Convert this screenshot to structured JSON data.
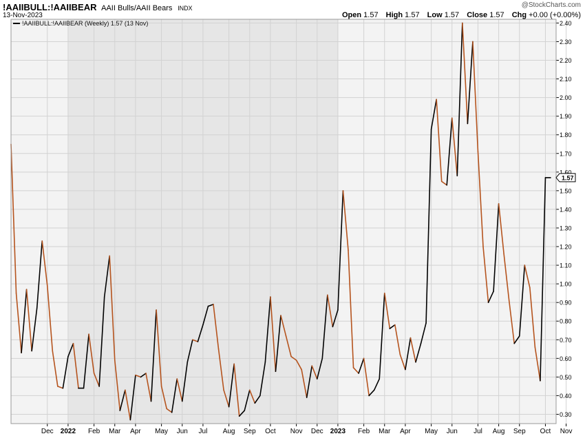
{
  "header": {
    "symbol": "!AAIIBULL:!AAIIBEAR",
    "description": "AAII Bulls/AAII Bears",
    "exchange": "INDX",
    "date": "13-Nov-2023",
    "brand": "@StockCharts.com",
    "open_label": "Open",
    "open": "1.57",
    "high_label": "High",
    "high": "1.57",
    "low_label": "Low",
    "low": "1.57",
    "close_label": "Close",
    "close": "1.57",
    "chg_label": "Chg",
    "chg": "+0.00 (+0.00%)"
  },
  "legend": {
    "label": "!AAIIBULL:!AAIIBEAR (Weekly) 1.57 (13 Nov)"
  },
  "chart_data": {
    "type": "line",
    "frequency": "weekly",
    "up_color": "#000000",
    "down_color": "#b5531d",
    "grid": true,
    "ylim": [
      0.25,
      2.42
    ],
    "y_ticks": [
      "0.30",
      "0.40",
      "0.50",
      "0.60",
      "0.70",
      "0.80",
      "0.90",
      "1.00",
      "1.10",
      "1.20",
      "1.30",
      "1.40",
      "1.50",
      "1.60",
      "1.70",
      "1.80",
      "1.90",
      "2.00",
      "2.10",
      "2.20",
      "2.30",
      "2.40"
    ],
    "x_ticks": [
      {
        "label": "Dec",
        "bold": false,
        "week": 7
      },
      {
        "label": "2022",
        "bold": true,
        "week": 11
      },
      {
        "label": "Feb",
        "bold": false,
        "week": 16
      },
      {
        "label": "Mar",
        "bold": false,
        "week": 20
      },
      {
        "label": "Apr",
        "bold": false,
        "week": 24
      },
      {
        "label": "May",
        "bold": false,
        "week": 29
      },
      {
        "label": "Jun",
        "bold": false,
        "week": 33
      },
      {
        "label": "Jul",
        "bold": false,
        "week": 37
      },
      {
        "label": "Aug",
        "bold": false,
        "week": 42
      },
      {
        "label": "Sep",
        "bold": false,
        "week": 46
      },
      {
        "label": "Oct",
        "bold": false,
        "week": 50
      },
      {
        "label": "Nov",
        "bold": false,
        "week": 55
      },
      {
        "label": "Dec",
        "bold": false,
        "week": 59
      },
      {
        "label": "2023",
        "bold": true,
        "week": 63
      },
      {
        "label": "Feb",
        "bold": false,
        "week": 68
      },
      {
        "label": "Mar",
        "bold": false,
        "week": 72
      },
      {
        "label": "Apr",
        "bold": false,
        "week": 76
      },
      {
        "label": "May",
        "bold": false,
        "week": 81
      },
      {
        "label": "Jun",
        "bold": false,
        "week": 85
      },
      {
        "label": "Jul",
        "bold": false,
        "week": 90
      },
      {
        "label": "Aug",
        "bold": false,
        "week": 94
      },
      {
        "label": "Sep",
        "bold": false,
        "week": 98
      },
      {
        "label": "Oct",
        "bold": false,
        "week": 103
      },
      {
        "label": "Nov",
        "bold": false,
        "week": 107
      }
    ],
    "shaded_weeks": [
      11,
      63
    ],
    "last_value_label": "1.57",
    "series": [
      {
        "values": [
          1.75,
          0.95,
          0.63,
          0.97,
          0.64,
          0.87,
          1.23,
          0.99,
          0.64,
          0.45,
          0.44,
          0.61,
          0.68,
          0.44,
          0.44,
          0.73,
          0.52,
          0.45,
          0.93,
          1.15,
          0.59,
          0.32,
          0.43,
          0.27,
          0.51,
          0.5,
          0.52,
          0.37,
          0.86,
          0.45,
          0.33,
          0.31,
          0.49,
          0.37,
          0.58,
          0.7,
          0.69,
          0.78,
          0.88,
          0.89,
          0.65,
          0.43,
          0.34,
          0.57,
          0.29,
          0.32,
          0.43,
          0.36,
          0.4,
          0.58,
          0.93,
          0.53,
          0.83,
          0.72,
          0.61,
          0.59,
          0.54,
          0.39,
          0.56,
          0.49,
          0.6,
          0.94,
          0.77,
          0.86,
          1.5,
          1.18,
          0.55,
          0.52,
          0.6,
          0.4,
          0.43,
          0.49,
          0.95,
          0.76,
          0.78,
          0.62,
          0.54,
          0.71,
          0.58,
          0.68,
          0.79,
          1.83,
          1.99,
          1.55,
          1.53,
          1.89,
          1.58,
          2.4,
          1.86,
          2.3,
          1.71,
          1.2,
          0.9,
          0.96,
          1.43,
          1.16,
          0.91,
          0.68,
          0.72,
          1.1,
          0.98,
          0.66,
          0.48,
          1.57,
          1.57
        ]
      }
    ]
  }
}
